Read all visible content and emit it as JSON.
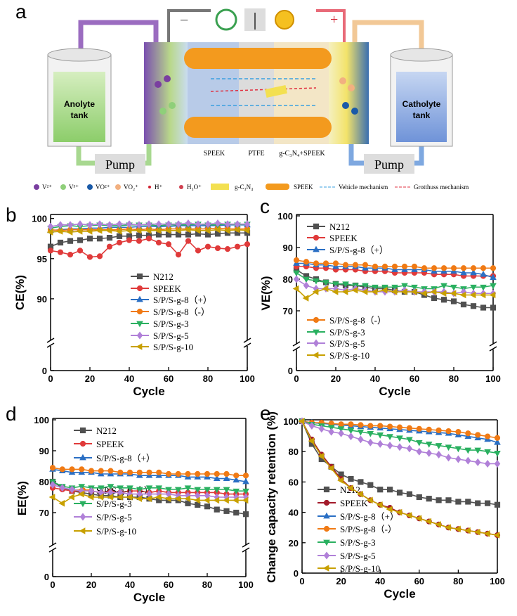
{
  "diagram": {
    "panel": "a",
    "minus": "−",
    "plus": "+",
    "anolyte": [
      "Anolyte",
      "tank"
    ],
    "catholyte": [
      "Catholyte",
      "tank"
    ],
    "pumps": [
      "Pump",
      "Pump"
    ],
    "membrane_labels": [
      "SPEEK",
      "PTFE",
      "g-C₃N₄+SPEEK"
    ],
    "legend": [
      "V²⁺",
      "V³⁺",
      "VO²⁺",
      "VO₂⁺",
      "H⁺",
      "H₃O⁺",
      "g-C₃N₄",
      "SPEEK",
      "Vehicle mechanism",
      "Grotthuss mechanism"
    ]
  },
  "chart_data": [
    {
      "type": "line",
      "panel": "b",
      "x_label": "Cycle",
      "y_label": "CE(%)",
      "axis_break": true,
      "x": [
        0,
        5,
        10,
        15,
        20,
        25,
        30,
        35,
        40,
        45,
        50,
        55,
        60,
        65,
        70,
        75,
        80,
        85,
        90,
        95,
        100
      ],
      "xlim": [
        0,
        100
      ],
      "xticks": [
        0,
        20,
        40,
        60,
        80,
        100
      ],
      "ylim": [
        85,
        100.5
      ],
      "yticks": [
        0,
        90,
        95,
        100
      ],
      "series": [
        {
          "name": "N212",
          "color": "#505050",
          "marker": "square",
          "values": [
            96.5,
            97,
            97.2,
            97.3,
            97.5,
            97.5,
            97.6,
            97.8,
            97.8,
            97.9,
            97.9,
            98,
            98,
            98,
            98,
            98.1,
            98,
            98.1,
            98.2,
            98.2,
            98.2
          ]
        },
        {
          "name": "SPEEK",
          "color": "#e03a3a",
          "marker": "circle",
          "values": [
            96,
            95.8,
            95.5,
            96,
            95.2,
            95.3,
            96.5,
            97,
            97.3,
            97.2,
            97.5,
            97,
            96.8,
            95.5,
            97.2,
            96,
            96.5,
            96.3,
            96.2,
            96.5,
            96.8
          ]
        },
        {
          "name": "S/P/S-g-8（+）",
          "color": "#2a6fc4",
          "marker": "triangle",
          "values": [
            98.5,
            98.6,
            98.7,
            98.7,
            98.8,
            98.8,
            98.9,
            98.9,
            98.9,
            99,
            99,
            99,
            99,
            99.1,
            99.1,
            99.1,
            99.1,
            99.1,
            99.2,
            99.2,
            99.2
          ]
        },
        {
          "name": "S/P/S-g-8（-）",
          "color": "#f07a14",
          "marker": "circle",
          "values": [
            98.6,
            98.5,
            98.6,
            98.6,
            98.6,
            98.6,
            98.6,
            98.6,
            98.7,
            98.6,
            98.7,
            98.6,
            98.7,
            98.7,
            98.7,
            98.7,
            98.7,
            98.8,
            98.7,
            98.7,
            98.7
          ]
        },
        {
          "name": "S/P/S-g-3",
          "color": "#2ab060",
          "marker": "triangle-down",
          "values": [
            98.8,
            99,
            99.1,
            99,
            99.1,
            99.2,
            99.1,
            99.1,
            99.2,
            99.2,
            99.2,
            99.1,
            99.2,
            99.2,
            99.2,
            99.3,
            99.2,
            99.2,
            99.3,
            99.2,
            99.3
          ]
        },
        {
          "name": "S/P/S-g-5",
          "color": "#b080d8",
          "marker": "diamond",
          "values": [
            99,
            99.2,
            99.2,
            99.3,
            99.2,
            99.3,
            99.2,
            99.3,
            99.3,
            99.2,
            99.3,
            99.3,
            99.3,
            99.3,
            99.4,
            99.3,
            99.3,
            99.4,
            99.3,
            99.3,
            99.3
          ]
        },
        {
          "name": "S/P/S-g-10",
          "color": "#c8a000",
          "marker": "triangle-left",
          "values": [
            98.3,
            98.4,
            98.3,
            98.4,
            98.4,
            98.5,
            98.5,
            98.4,
            98.5,
            98.5,
            98.5,
            98.5,
            98.5,
            98.5,
            98.6,
            98.5,
            98.5,
            98.6,
            98.5,
            98.6,
            98.5
          ]
        }
      ]
    },
    {
      "type": "line",
      "panel": "c",
      "x_label": "Cycle",
      "y_label": "VE(%)",
      "axis_break": true,
      "x": [
        0,
        5,
        10,
        15,
        20,
        25,
        30,
        35,
        40,
        45,
        50,
        55,
        60,
        65,
        70,
        75,
        80,
        85,
        90,
        95,
        100
      ],
      "xlim": [
        0,
        100
      ],
      "xticks": [
        0,
        20,
        40,
        60,
        80,
        100
      ],
      "ylim": [
        60,
        100
      ],
      "yticks": [
        0,
        70,
        80,
        90,
        100
      ],
      "series": [
        {
          "name": "N212",
          "color": "#505050",
          "marker": "square",
          "values": [
            83,
            81,
            80,
            79,
            78.5,
            78,
            78,
            77.5,
            77,
            77,
            76.5,
            76,
            76,
            75,
            74,
            73.5,
            73,
            72,
            71.5,
            71,
            71
          ]
        },
        {
          "name": "SPEEK",
          "color": "#e03a3a",
          "marker": "circle",
          "values": [
            84,
            84,
            83.5,
            83.5,
            83,
            83,
            83,
            82.5,
            82.5,
            82.5,
            82,
            82,
            82,
            82,
            81.5,
            81.5,
            81.5,
            81,
            81,
            81,
            81
          ]
        },
        {
          "name": "S/P/S-g-8（+）",
          "color": "#2a6fc4",
          "marker": "triangle",
          "values": [
            85,
            85,
            84.5,
            84.5,
            84,
            84,
            84,
            83.5,
            83.5,
            83.5,
            83,
            83,
            83,
            83,
            82.5,
            82.5,
            82.5,
            82,
            82,
            81.5,
            80.5
          ]
        },
        {
          "name": "S/P/S-g-8（-）",
          "color": "#f07a14",
          "marker": "circle",
          "values": [
            86,
            85.5,
            85,
            85,
            85,
            84.5,
            84.5,
            84.5,
            84,
            84,
            84,
            84,
            84,
            83.5,
            83.5,
            83.5,
            83.5,
            83.5,
            83.5,
            83.5,
            83.5
          ]
        },
        {
          "name": "S/P/S-g-3",
          "color": "#2ab060",
          "marker": "triangle-down",
          "values": [
            82,
            80,
            79.5,
            79,
            78.5,
            78.5,
            78,
            78,
            77.5,
            77.5,
            77.5,
            78,
            77.5,
            77,
            77,
            78,
            77.5,
            77,
            77.5,
            77.5,
            78
          ]
        },
        {
          "name": "S/P/S-g-5",
          "color": "#b080d8",
          "marker": "diamond",
          "values": [
            80,
            78,
            77,
            77,
            77,
            76.5,
            77,
            76.5,
            76,
            76,
            76,
            76.5,
            76,
            76,
            76,
            76,
            75.5,
            76,
            75.5,
            75.5,
            75.5
          ]
        },
        {
          "name": "S/P/S-g-10",
          "color": "#c8a000",
          "marker": "triangle-left",
          "values": [
            77,
            74,
            76,
            77,
            76,
            76,
            76.5,
            76,
            76,
            76.5,
            76,
            76,
            76,
            75.5,
            76,
            75.5,
            75.5,
            75,
            75,
            75,
            75
          ]
        }
      ]
    },
    {
      "type": "line",
      "panel": "d",
      "x_label": "Cycle",
      "y_label": "EE(%)",
      "axis_break": true,
      "x": [
        0,
        5,
        10,
        15,
        20,
        25,
        30,
        35,
        40,
        45,
        50,
        55,
        60,
        65,
        70,
        75,
        80,
        85,
        90,
        95,
        100
      ],
      "xlim": [
        0,
        100
      ],
      "xticks": [
        0,
        20,
        40,
        60,
        80,
        100
      ],
      "ylim": [
        60,
        100
      ],
      "yticks": [
        0,
        70,
        80,
        90,
        100
      ],
      "series": [
        {
          "name": "N212",
          "color": "#505050",
          "marker": "square",
          "values": [
            80,
            78,
            77,
            76.5,
            76,
            75.5,
            75.5,
            75,
            75,
            75,
            74.5,
            74,
            74,
            74,
            73,
            72.5,
            72,
            71,
            70.5,
            70,
            69.5
          ]
        },
        {
          "name": "SPEEK",
          "color": "#e03a3a",
          "marker": "circle",
          "values": [
            78,
            77.5,
            77,
            77,
            77,
            76.5,
            77,
            76.5,
            77,
            77,
            76.5,
            77,
            76.5,
            76.5,
            76.5,
            76.5,
            76.5,
            76.5,
            76,
            76,
            76
          ]
        },
        {
          "name": "S/P/S-g-8（+）",
          "color": "#2a6fc4",
          "marker": "triangle",
          "values": [
            84,
            83.5,
            83,
            83,
            83,
            82.5,
            82.5,
            82.5,
            82.5,
            82,
            82,
            82,
            82,
            82,
            81.5,
            81.5,
            81.5,
            81,
            81,
            80.5,
            80
          ]
        },
        {
          "name": "S/P/S-g-8（-）",
          "color": "#f07a14",
          "marker": "circle",
          "values": [
            84.5,
            84,
            84,
            84,
            83.5,
            83.5,
            83.5,
            83,
            83,
            83,
            83,
            83,
            82.5,
            82.5,
            82.5,
            82.5,
            82.5,
            82.5,
            82.5,
            82,
            82
          ]
        },
        {
          "name": "S/P/S-g-3",
          "color": "#2ab060",
          "marker": "triangle-down",
          "values": [
            80,
            78.5,
            78,
            78.5,
            78,
            78,
            78.5,
            78,
            78,
            77.5,
            78,
            78,
            77.5,
            77.5,
            78,
            77.5,
            77.5,
            77.5,
            77.5,
            77,
            77
          ]
        },
        {
          "name": "S/P/S-g-5",
          "color": "#b080d8",
          "marker": "diamond",
          "values": [
            79,
            78,
            77.5,
            77,
            77,
            76.5,
            76.5,
            76.5,
            76,
            76,
            76,
            76,
            76,
            75.5,
            75.5,
            75.5,
            75.5,
            75,
            75,
            75,
            75
          ]
        },
        {
          "name": "S/P/S-g-10",
          "color": "#c8a000",
          "marker": "triangle-left",
          "values": [
            75,
            73,
            75,
            76,
            75,
            75,
            75,
            75,
            75,
            74.5,
            74.5,
            75,
            74.5,
            74.5,
            74.5,
            74,
            74,
            74,
            74,
            74,
            74
          ]
        }
      ]
    },
    {
      "type": "line",
      "panel": "e",
      "x_label": "Cycle",
      "y_label": "Change capacity retention (%)",
      "axis_break": false,
      "x": [
        0,
        5,
        10,
        15,
        20,
        25,
        30,
        35,
        40,
        45,
        50,
        55,
        60,
        65,
        70,
        75,
        80,
        85,
        90,
        95,
        100
      ],
      "xlim": [
        0,
        100
      ],
      "xticks": [
        0,
        20,
        40,
        60,
        80,
        100
      ],
      "ylim": [
        0,
        100
      ],
      "yticks": [
        0,
        20,
        40,
        60,
        80,
        100
      ],
      "series": [
        {
          "name": "N212",
          "color": "#505050",
          "marker": "square",
          "values": [
            100,
            85,
            75,
            70,
            65,
            62,
            60,
            58,
            55,
            55,
            53,
            52,
            50,
            49,
            48,
            48,
            47,
            47,
            46,
            46,
            45
          ]
        },
        {
          "name": "SPEEK",
          "color": "#a31a2a",
          "marker": "circle",
          "values": [
            100,
            88,
            78,
            70,
            62,
            56,
            52,
            48,
            45,
            43,
            40,
            38,
            36,
            34,
            32,
            30,
            29,
            28,
            27,
            26,
            25
          ]
        },
        {
          "name": "S/P/S-g-8（+）",
          "color": "#2a6fc4",
          "marker": "triangle",
          "values": [
            100,
            99,
            98.5,
            98,
            97.5,
            97,
            96.5,
            96,
            95.5,
            95,
            94.5,
            94,
            93.5,
            93,
            92.5,
            92,
            91,
            90,
            89,
            88,
            86
          ]
        },
        {
          "name": "S/P/S-g-8（-）",
          "color": "#f07a14",
          "marker": "circle",
          "values": [
            100,
            99,
            99,
            98.5,
            98,
            98,
            97.5,
            97,
            97,
            96.5,
            96,
            95.5,
            95,
            94.5,
            94,
            93.5,
            93,
            92,
            91,
            90,
            89
          ]
        },
        {
          "name": "S/P/S-g-3",
          "color": "#2ab060",
          "marker": "triangle-down",
          "values": [
            100,
            98,
            97,
            96,
            95,
            94,
            93,
            92,
            91,
            90,
            89,
            88,
            86,
            85,
            84,
            83,
            82,
            81,
            81,
            80,
            79
          ]
        },
        {
          "name": "S/P/S-g-5",
          "color": "#b080d8",
          "marker": "diamond",
          "values": [
            100,
            97,
            95,
            93,
            92,
            90,
            88,
            86,
            85,
            84,
            83,
            82,
            80,
            79,
            78,
            76,
            75,
            74,
            73,
            72,
            72
          ]
        },
        {
          "name": "S/P/S-g-10",
          "color": "#c8a000",
          "marker": "triangle-left",
          "values": [
            100,
            87,
            77,
            69,
            61,
            56,
            52,
            48,
            45,
            42,
            40,
            38,
            36,
            34,
            32,
            30,
            29,
            28,
            27,
            26,
            25
          ]
        }
      ]
    }
  ]
}
